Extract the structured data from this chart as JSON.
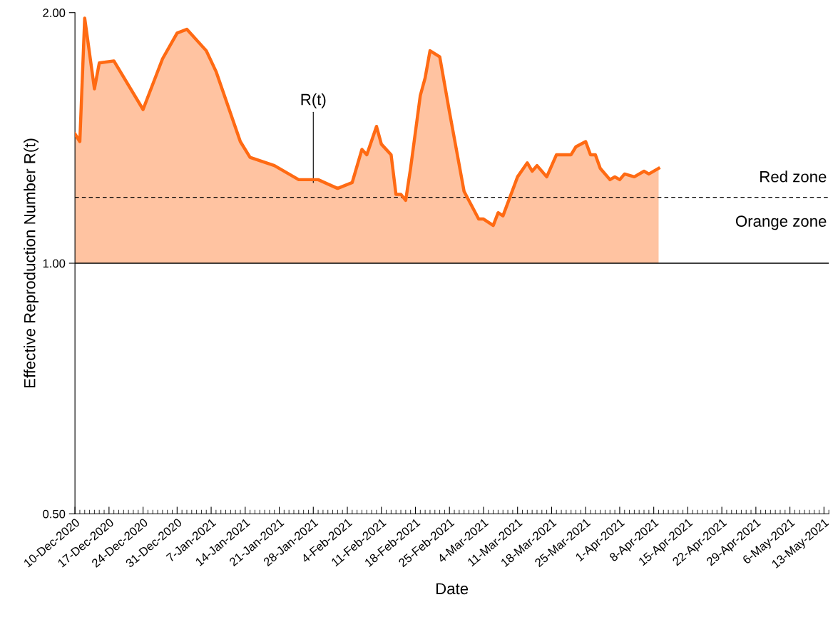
{
  "chart_data": {
    "type": "area",
    "xlabel": "Date",
    "ylabel": "Effective Reproduction Number R(t)",
    "log": true,
    "x": [
      "2020-12-10",
      "2020-12-11",
      "2020-12-12",
      "2020-12-14",
      "2020-12-15",
      "2020-12-18",
      "2020-12-24",
      "2020-12-28",
      "2020-12-31",
      "2021-01-02",
      "2021-01-06",
      "2021-01-08",
      "2021-01-13",
      "2021-01-15",
      "2021-01-20",
      "2021-01-25",
      "2021-01-29",
      "2021-02-02",
      "2021-02-05",
      "2021-02-07",
      "2021-02-08",
      "2021-02-10",
      "2021-02-11",
      "2021-02-13",
      "2021-02-14",
      "2021-02-15",
      "2021-02-16",
      "2021-02-17",
      "2021-02-19",
      "2021-02-20",
      "2021-02-21",
      "2021-02-23",
      "2021-02-25",
      "2021-02-28",
      "2021-03-03",
      "2021-03-04",
      "2021-03-06",
      "2021-03-07",
      "2021-03-08",
      "2021-03-11",
      "2021-03-13",
      "2021-03-14",
      "2021-03-15",
      "2021-03-17",
      "2021-03-19",
      "2021-03-21",
      "2021-03-22",
      "2021-03-23",
      "2021-03-25",
      "2021-03-26",
      "2021-03-27",
      "2021-03-28",
      "2021-03-30",
      "2021-03-31",
      "2021-04-01",
      "2021-04-02",
      "2021-04-04",
      "2021-04-06",
      "2021-04-07",
      "2021-04-09"
    ],
    "series": [
      {
        "color": "#ff6a13",
        "values": [
          1.43,
          1.4,
          1.97,
          1.62,
          1.74,
          1.75,
          1.53,
          1.76,
          1.89,
          1.91,
          1.8,
          1.7,
          1.4,
          1.34,
          1.31,
          1.26,
          1.26,
          1.23,
          1.25,
          1.37,
          1.35,
          1.46,
          1.39,
          1.35,
          1.21,
          1.21,
          1.19,
          1.3,
          1.59,
          1.67,
          1.8,
          1.77,
          1.52,
          1.22,
          1.13,
          1.13,
          1.11,
          1.15,
          1.14,
          1.27,
          1.32,
          1.29,
          1.31,
          1.27,
          1.35,
          1.35,
          1.35,
          1.38,
          1.4,
          1.35,
          1.35,
          1.3,
          1.26,
          1.27,
          1.26,
          1.28,
          1.27,
          1.29,
          1.28,
          1.3
        ]
      }
    ],
    "xlim": [
      "2020-12-10",
      "2021-05-14"
    ],
    "xticks": [
      {
        "value": "2020-12-10",
        "label": "10-Dec-2020"
      },
      {
        "value": "2020-12-17",
        "label": "17-Dec-2020"
      },
      {
        "value": "2020-12-24",
        "label": "24-Dec-2020"
      },
      {
        "value": "2020-12-31",
        "label": "31-Dec-2020"
      },
      {
        "value": "2021-01-07",
        "label": "7-Jan-2021"
      },
      {
        "value": "2021-01-14",
        "label": "14-Jan-2021"
      },
      {
        "value": "2021-01-21",
        "label": "21-Jan-2021"
      },
      {
        "value": "2021-01-28",
        "label": "28-Jan-2021"
      },
      {
        "value": "2021-02-04",
        "label": "4-Feb-2021"
      },
      {
        "value": "2021-02-11",
        "label": "11-Feb-2021"
      },
      {
        "value": "2021-02-18",
        "label": "18-Feb-2021"
      },
      {
        "value": "2021-02-25",
        "label": "25-Feb-2021"
      },
      {
        "value": "2021-03-04",
        "label": "4-Mar-2021"
      },
      {
        "value": "2021-03-11",
        "label": "11-Mar-2021"
      },
      {
        "value": "2021-03-18",
        "label": "18-Mar-2021"
      },
      {
        "value": "2021-03-25",
        "label": "25-Mar-2021"
      },
      {
        "value": "2021-04-01",
        "label": "1-Apr-2021"
      },
      {
        "value": "2021-04-08",
        "label": "8-Apr-2021"
      },
      {
        "value": "2021-04-15",
        "label": "15-Apr-2021"
      },
      {
        "value": "2021-04-22",
        "label": "22-Apr-2021"
      },
      {
        "value": "2021-04-29",
        "label": "29-Apr-2021"
      },
      {
        "value": "2021-05-06",
        "label": "6-May-2021"
      },
      {
        "value": "2021-05-13",
        "label": "13-May-2021"
      }
    ],
    "ylim": [
      0.5,
      2.0
    ],
    "yticks": [
      {
        "value": 0.5,
        "label": "0.50"
      },
      {
        "value": 1.0,
        "label": "1.00"
      },
      {
        "value": 2.0,
        "label": "2.00"
      }
    ],
    "ref_lines": [
      {
        "axis": "y",
        "value": 1.0,
        "color": "#000000",
        "line_style": "solid"
      },
      {
        "axis": "y",
        "value": 1.2,
        "color": "#000000",
        "line_style": "dashed"
      }
    ],
    "annotations": [
      {
        "text": "R(t)",
        "x": "2021-01-28",
        "y": 1.25
      },
      "Red zone",
      "Orange zone"
    ],
    "grid": false,
    "legend": false
  }
}
